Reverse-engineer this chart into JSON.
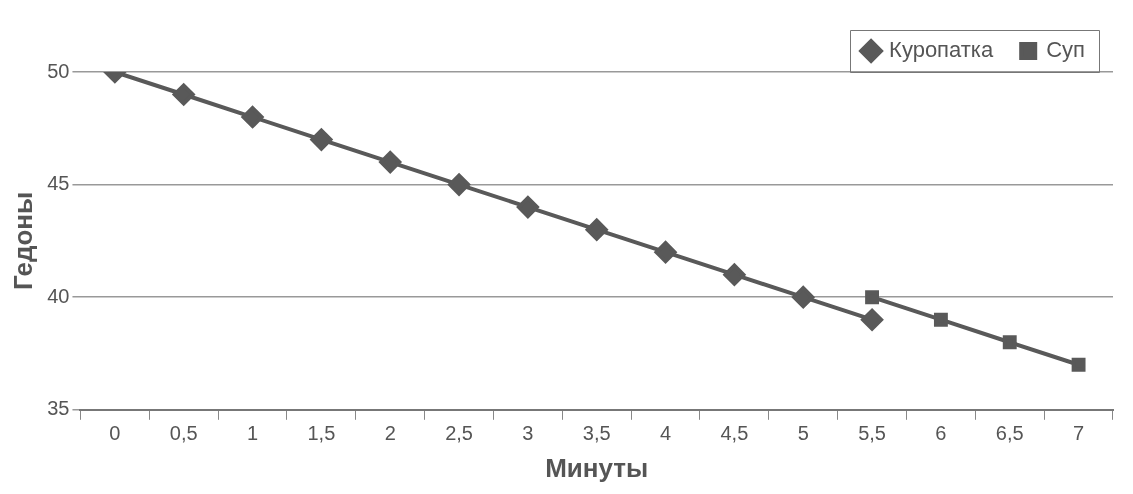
{
  "chart_data": {
    "type": "line",
    "xlabel": "Минуты",
    "ylabel": "Гедоны",
    "categories": [
      "0",
      "0,5",
      "1",
      "1,5",
      "2",
      "2,5",
      "3",
      "3,5",
      "4",
      "4,5",
      "5",
      "5,5",
      "6",
      "6,5",
      "7"
    ],
    "series": [
      {
        "name": "Куропатка",
        "color": "#595959",
        "marker": "diamond",
        "values": [
          50,
          49,
          48,
          47,
          46,
          45,
          44,
          43,
          42,
          41,
          40,
          39,
          null,
          null,
          null
        ]
      },
      {
        "name": "Суп",
        "color": "#595959",
        "marker": "square",
        "values": [
          null,
          null,
          null,
          null,
          null,
          null,
          null,
          null,
          null,
          null,
          null,
          40,
          39,
          38,
          37
        ]
      }
    ],
    "ylim": [
      35,
      50
    ],
    "yticks": [
      35,
      40,
      45,
      50
    ],
    "grid": "y",
    "legend": "top right",
    "line_style": "solid"
  }
}
